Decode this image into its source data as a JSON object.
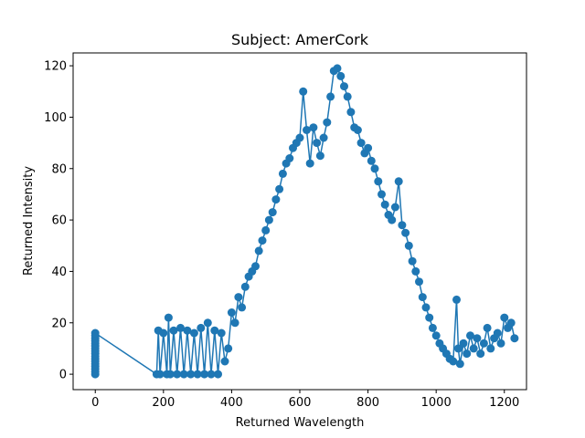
{
  "chart_data": {
    "type": "line",
    "title": "Subject: AmerCork",
    "xlabel": "Returned Wavelength",
    "ylabel": "Returned Intensity",
    "xlim": [
      -65,
      1265
    ],
    "ylim": [
      -6,
      125
    ],
    "xticks": [
      0,
      200,
      400,
      600,
      800,
      1000,
      1200
    ],
    "yticks": [
      0,
      20,
      40,
      60,
      80,
      100,
      120
    ],
    "grid": false,
    "markers": true,
    "color": "#1f77b4",
    "series": [
      {
        "x": [
          0,
          0,
          0,
          0,
          0,
          0,
          0,
          0,
          0,
          0,
          0,
          0,
          0,
          0,
          0,
          0,
          0,
          180,
          185,
          190,
          200,
          210,
          215,
          220,
          230,
          240,
          250,
          260,
          270,
          280,
          290,
          300,
          310,
          320,
          330,
          340,
          350,
          360,
          370,
          380,
          390,
          400,
          410,
          420,
          430,
          440,
          450,
          460,
          470,
          480,
          490,
          500,
          510,
          520,
          530,
          540,
          550,
          560,
          570,
          580,
          590,
          600,
          610,
          620,
          630,
          640,
          650,
          660,
          670,
          680,
          690,
          700,
          710,
          720,
          730,
          740,
          750,
          760,
          770,
          780,
          790,
          800,
          810,
          820,
          830,
          840,
          850,
          860,
          870,
          880,
          890,
          900,
          910,
          920,
          930,
          940,
          950,
          960,
          970,
          980,
          990,
          1000,
          1010,
          1020,
          1030,
          1040,
          1050,
          1060,
          1065,
          1070,
          1080,
          1090,
          1100,
          1110,
          1120,
          1130,
          1140,
          1150,
          1160,
          1170,
          1180,
          1190,
          1200,
          1210,
          1220,
          1230
        ],
        "y": [
          0,
          1,
          2,
          3,
          4,
          5,
          6,
          7,
          8,
          9,
          10,
          11,
          12,
          13,
          14,
          15,
          16,
          0,
          17,
          0,
          16,
          0,
          22,
          0,
          17,
          0,
          18,
          0,
          17,
          0,
          16,
          0,
          18,
          0,
          20,
          0,
          17,
          0,
          16,
          5,
          10,
          24,
          20,
          30,
          26,
          34,
          38,
          40,
          42,
          48,
          52,
          56,
          60,
          63,
          68,
          72,
          78,
          82,
          84,
          88,
          90,
          92,
          110,
          95,
          82,
          96,
          90,
          85,
          92,
          98,
          108,
          118,
          119,
          116,
          112,
          108,
          102,
          96,
          95,
          90,
          86,
          88,
          83,
          80,
          75,
          70,
          66,
          62,
          60,
          65,
          75,
          58,
          55,
          50,
          44,
          40,
          36,
          30,
          26,
          22,
          18,
          15,
          12,
          10,
          8,
          6,
          5,
          29,
          10,
          4,
          12,
          8,
          15,
          10,
          14,
          8,
          12,
          18,
          10,
          14,
          16,
          12,
          22,
          18,
          20,
          14
        ]
      }
    ]
  }
}
